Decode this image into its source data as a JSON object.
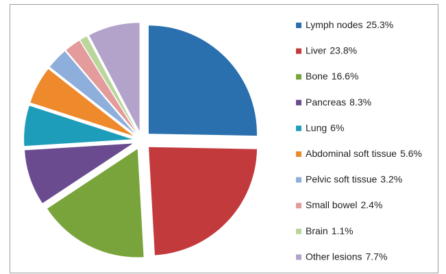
{
  "chart_data": {
    "type": "pie",
    "categories": [
      "Lymph nodes",
      "Liver",
      "Bone",
      "Pancreas",
      "Lung",
      "Abdominal soft tissue",
      "Pelvic soft tissue",
      "Small bowel",
      "Brain",
      "Other lesions"
    ],
    "values": [
      25.3,
      23.8,
      16.6,
      8.3,
      6,
      5.6,
      3.2,
      2.4,
      1.1,
      7.7
    ],
    "value_labels": [
      "25.3%",
      "23.8%",
      "16.6%",
      "8.3%",
      "6%",
      "5.6%",
      "3.2%",
      "2.4%",
      "1.1%",
      "7.7%"
    ],
    "colors": [
      "#2a6fae",
      "#c23a3c",
      "#78a43b",
      "#6b4b8f",
      "#1e9dbb",
      "#ee892c",
      "#8eaedb",
      "#e39b9b",
      "#bad69b",
      "#b3a3ca"
    ],
    "legend": "right"
  }
}
